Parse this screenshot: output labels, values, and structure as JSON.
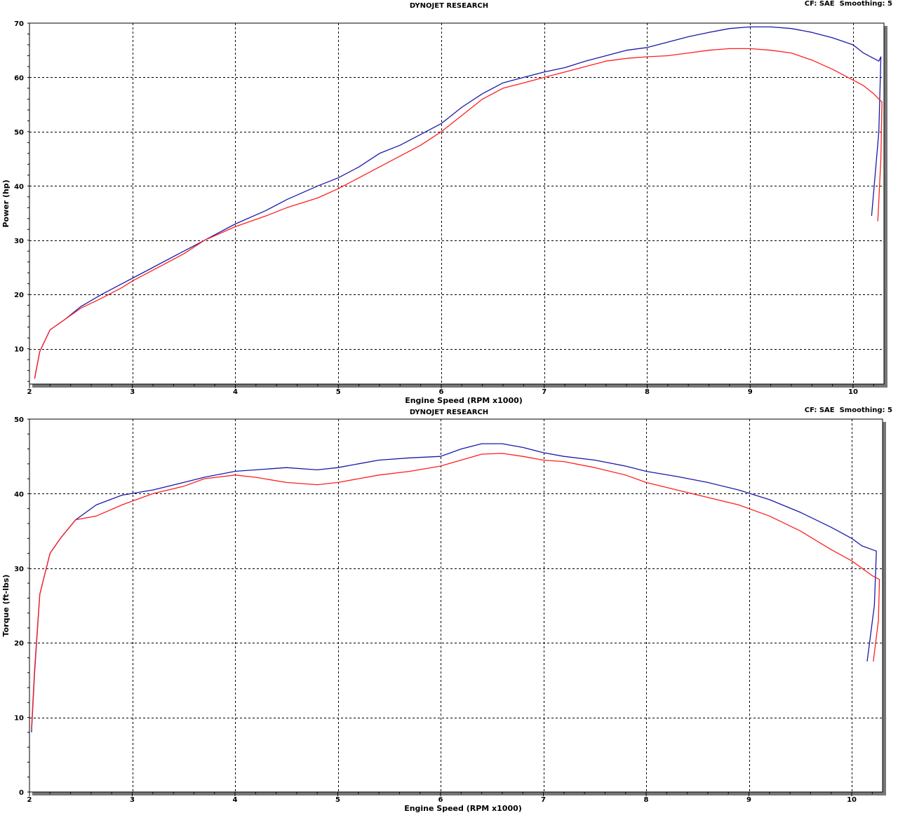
{
  "header": {
    "title": "DYNOJET RESEARCH",
    "cf_label": "CF: SAE  Smoothing: 5"
  },
  "colors": {
    "blue_run": "#1a1aa8",
    "red_run": "#ff1f1f",
    "grid": "#000000",
    "frame_shadow": "#777777"
  },
  "chart_data": [
    {
      "type": "line",
      "title": "DYNOJET RESEARCH",
      "xlabel": "Engine Speed (RPM x1000)",
      "ylabel": "Power (hp)",
      "xlim": [
        2,
        10.3
      ],
      "ylim": [
        3.5,
        70
      ],
      "x_ticks": [
        2,
        3,
        4,
        5,
        6,
        7,
        8,
        9,
        10
      ],
      "y_ticks": [
        10,
        20,
        30,
        40,
        50,
        60,
        70
      ],
      "grid": true,
      "series": [
        {
          "color": "#1a1aa8",
          "x": [
            2.05,
            2.1,
            2.2,
            2.35,
            2.5,
            2.7,
            2.9,
            3.0,
            3.2,
            3.5,
            3.7,
            4.0,
            4.3,
            4.5,
            4.8,
            5.0,
            5.2,
            5.4,
            5.6,
            5.8,
            6.0,
            6.2,
            6.4,
            6.6,
            6.8,
            7.0,
            7.2,
            7.4,
            7.6,
            7.8,
            8.0,
            8.2,
            8.4,
            8.6,
            8.8,
            9.0,
            9.2,
            9.4,
            9.6,
            9.8,
            10.0,
            10.1,
            10.2,
            10.25,
            10.27,
            10.25,
            10.18
          ],
          "y": [
            4.5,
            9.5,
            13.5,
            15.5,
            17.8,
            20.0,
            22.0,
            23.0,
            25.0,
            28.0,
            30.0,
            33.0,
            35.5,
            37.5,
            40.0,
            41.5,
            43.5,
            46.0,
            47.5,
            49.5,
            51.5,
            54.5,
            57.0,
            59.0,
            60.0,
            61.0,
            61.8,
            63.0,
            64.0,
            65.0,
            65.5,
            66.5,
            67.5,
            68.3,
            69.0,
            69.3,
            69.3,
            69.0,
            68.3,
            67.3,
            66.0,
            64.5,
            63.5,
            63.0,
            63.8,
            50.0,
            34.5
          ]
        },
        {
          "color": "#ff1f1f",
          "x": [
            2.05,
            2.1,
            2.2,
            2.35,
            2.5,
            2.7,
            2.9,
            3.0,
            3.2,
            3.5,
            3.7,
            4.0,
            4.3,
            4.5,
            4.8,
            5.0,
            5.2,
            5.4,
            5.6,
            5.8,
            6.0,
            6.2,
            6.4,
            6.6,
            6.8,
            7.0,
            7.2,
            7.4,
            7.6,
            7.8,
            8.0,
            8.2,
            8.4,
            8.6,
            8.8,
            9.0,
            9.2,
            9.4,
            9.6,
            9.8,
            10.0,
            10.1,
            10.2,
            10.25,
            10.28,
            10.27,
            10.24
          ],
          "y": [
            4.5,
            9.5,
            13.5,
            15.5,
            17.5,
            19.3,
            21.3,
            22.5,
            24.5,
            27.5,
            30.0,
            32.5,
            34.5,
            36.0,
            37.8,
            39.5,
            41.5,
            43.5,
            45.5,
            47.5,
            50.0,
            53.0,
            56.0,
            58.0,
            59.0,
            60.0,
            61.0,
            62.0,
            63.0,
            63.5,
            63.8,
            64.0,
            64.5,
            65.0,
            65.3,
            65.3,
            65.0,
            64.5,
            63.2,
            61.5,
            59.5,
            58.5,
            57.0,
            56.0,
            55.5,
            45.0,
            33.5
          ]
        }
      ]
    },
    {
      "type": "line",
      "title": "DYNOJET RESEARCH",
      "xlabel": "Engine Speed (RPM x1000)",
      "ylabel": "Torque (ft-lbs)",
      "xlim": [
        2,
        10.3
      ],
      "ylim": [
        0,
        50
      ],
      "x_ticks": [
        2,
        3,
        4,
        5,
        6,
        7,
        8,
        9,
        10
      ],
      "y_ticks": [
        0,
        10,
        20,
        30,
        40,
        50
      ],
      "grid": true,
      "series": [
        {
          "color": "#1a1aa8",
          "x": [
            2.02,
            2.05,
            2.1,
            2.2,
            2.3,
            2.45,
            2.65,
            2.9,
            3.2,
            3.5,
            3.7,
            4.0,
            4.2,
            4.5,
            4.8,
            5.0,
            5.2,
            5.4,
            5.7,
            6.0,
            6.2,
            6.4,
            6.6,
            6.8,
            7.0,
            7.2,
            7.5,
            7.8,
            8.0,
            8.3,
            8.6,
            8.9,
            9.2,
            9.5,
            9.8,
            10.0,
            10.1,
            10.2,
            10.24,
            10.22,
            10.15
          ],
          "y": [
            8.0,
            16.0,
            26.5,
            32.0,
            34.0,
            36.5,
            38.5,
            39.8,
            40.5,
            41.5,
            42.2,
            43.0,
            43.2,
            43.5,
            43.2,
            43.5,
            44.0,
            44.5,
            44.8,
            45.0,
            46.0,
            46.7,
            46.7,
            46.2,
            45.5,
            45.0,
            44.5,
            43.7,
            43.0,
            42.3,
            41.5,
            40.5,
            39.2,
            37.5,
            35.5,
            34.0,
            33.0,
            32.5,
            32.3,
            25.0,
            17.5
          ]
        },
        {
          "color": "#ff1f1f",
          "x": [
            2.02,
            2.05,
            2.1,
            2.2,
            2.3,
            2.45,
            2.65,
            2.9,
            3.2,
            3.5,
            3.7,
            4.0,
            4.2,
            4.5,
            4.8,
            5.0,
            5.2,
            5.4,
            5.7,
            6.0,
            6.2,
            6.4,
            6.6,
            6.8,
            7.0,
            7.2,
            7.5,
            7.8,
            8.0,
            8.3,
            8.6,
            8.9,
            9.2,
            9.5,
            9.8,
            10.0,
            10.1,
            10.2,
            10.27,
            10.26,
            10.21
          ],
          "y": [
            8.5,
            16.5,
            26.5,
            32.0,
            34.0,
            36.5,
            37.0,
            38.5,
            40.0,
            41.0,
            42.0,
            42.5,
            42.2,
            41.5,
            41.2,
            41.5,
            42.0,
            42.5,
            43.0,
            43.7,
            44.5,
            45.3,
            45.4,
            45.0,
            44.5,
            44.3,
            43.5,
            42.5,
            41.5,
            40.5,
            39.5,
            38.5,
            37.0,
            35.0,
            32.5,
            31.0,
            30.0,
            29.0,
            28.5,
            23.0,
            17.5
          ]
        }
      ]
    }
  ]
}
